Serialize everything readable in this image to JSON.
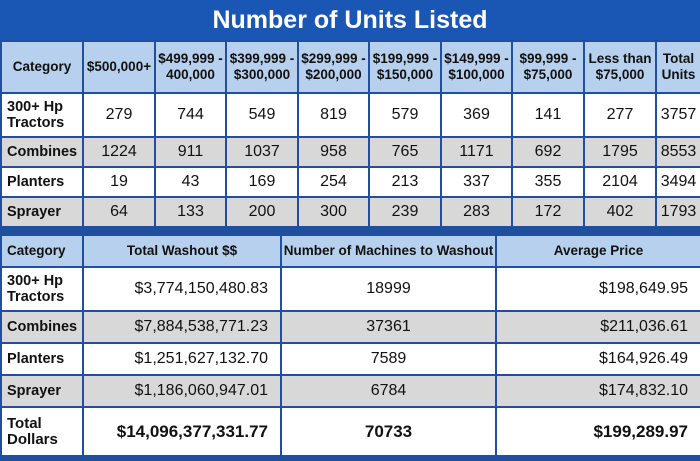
{
  "title": "Number of Units Listed",
  "units_table": {
    "headers": [
      "Category",
      "$500,000+",
      "$499,999 -\n400,000",
      "$399,999 -\n$300,000",
      "$299,999 -\n$200,000",
      "$199,999 -\n$150,000",
      "$149,999 -\n$100,000",
      "$99,999 -\n$75,000",
      "Less than\n$75,000",
      "Total\nUnits"
    ],
    "rows": [
      {
        "category": "300+ Hp Tractors",
        "values": [
          "279",
          "744",
          "549",
          "819",
          "579",
          "369",
          "141",
          "277",
          "3757"
        ]
      },
      {
        "category": "Combines",
        "values": [
          "1224",
          "911",
          "1037",
          "958",
          "765",
          "1171",
          "692",
          "1795",
          "8553"
        ]
      },
      {
        "category": "Planters",
        "values": [
          "19",
          "43",
          "169",
          "254",
          "213",
          "337",
          "355",
          "2104",
          "3494"
        ]
      },
      {
        "category": "Sprayer",
        "values": [
          "64",
          "133",
          "200",
          "300",
          "239",
          "283",
          "172",
          "402",
          "1793"
        ]
      }
    ]
  },
  "washout_table": {
    "headers": [
      "Category",
      "Total Washout $$",
      "Number of Machines to Washout",
      "Average Price"
    ],
    "rows": [
      {
        "category": "300+ Hp Tractors",
        "values": [
          "$3,774,150,480.83",
          "18999",
          "$198,649.95"
        ]
      },
      {
        "category": "Combines",
        "values": [
          "$7,884,538,771.23",
          "37361",
          "$211,036.61"
        ]
      },
      {
        "category": "Planters",
        "values": [
          "$1,251,627,132.70",
          "7589",
          "$164,926.49"
        ]
      },
      {
        "category": "Sprayer",
        "values": [
          "$1,186,060,947.01",
          "6784",
          "$174,832.10"
        ]
      }
    ],
    "total": {
      "category": "Total Dollars",
      "values": [
        "$14,096,377,331.77",
        "70733",
        "$199,289.97"
      ]
    }
  }
}
